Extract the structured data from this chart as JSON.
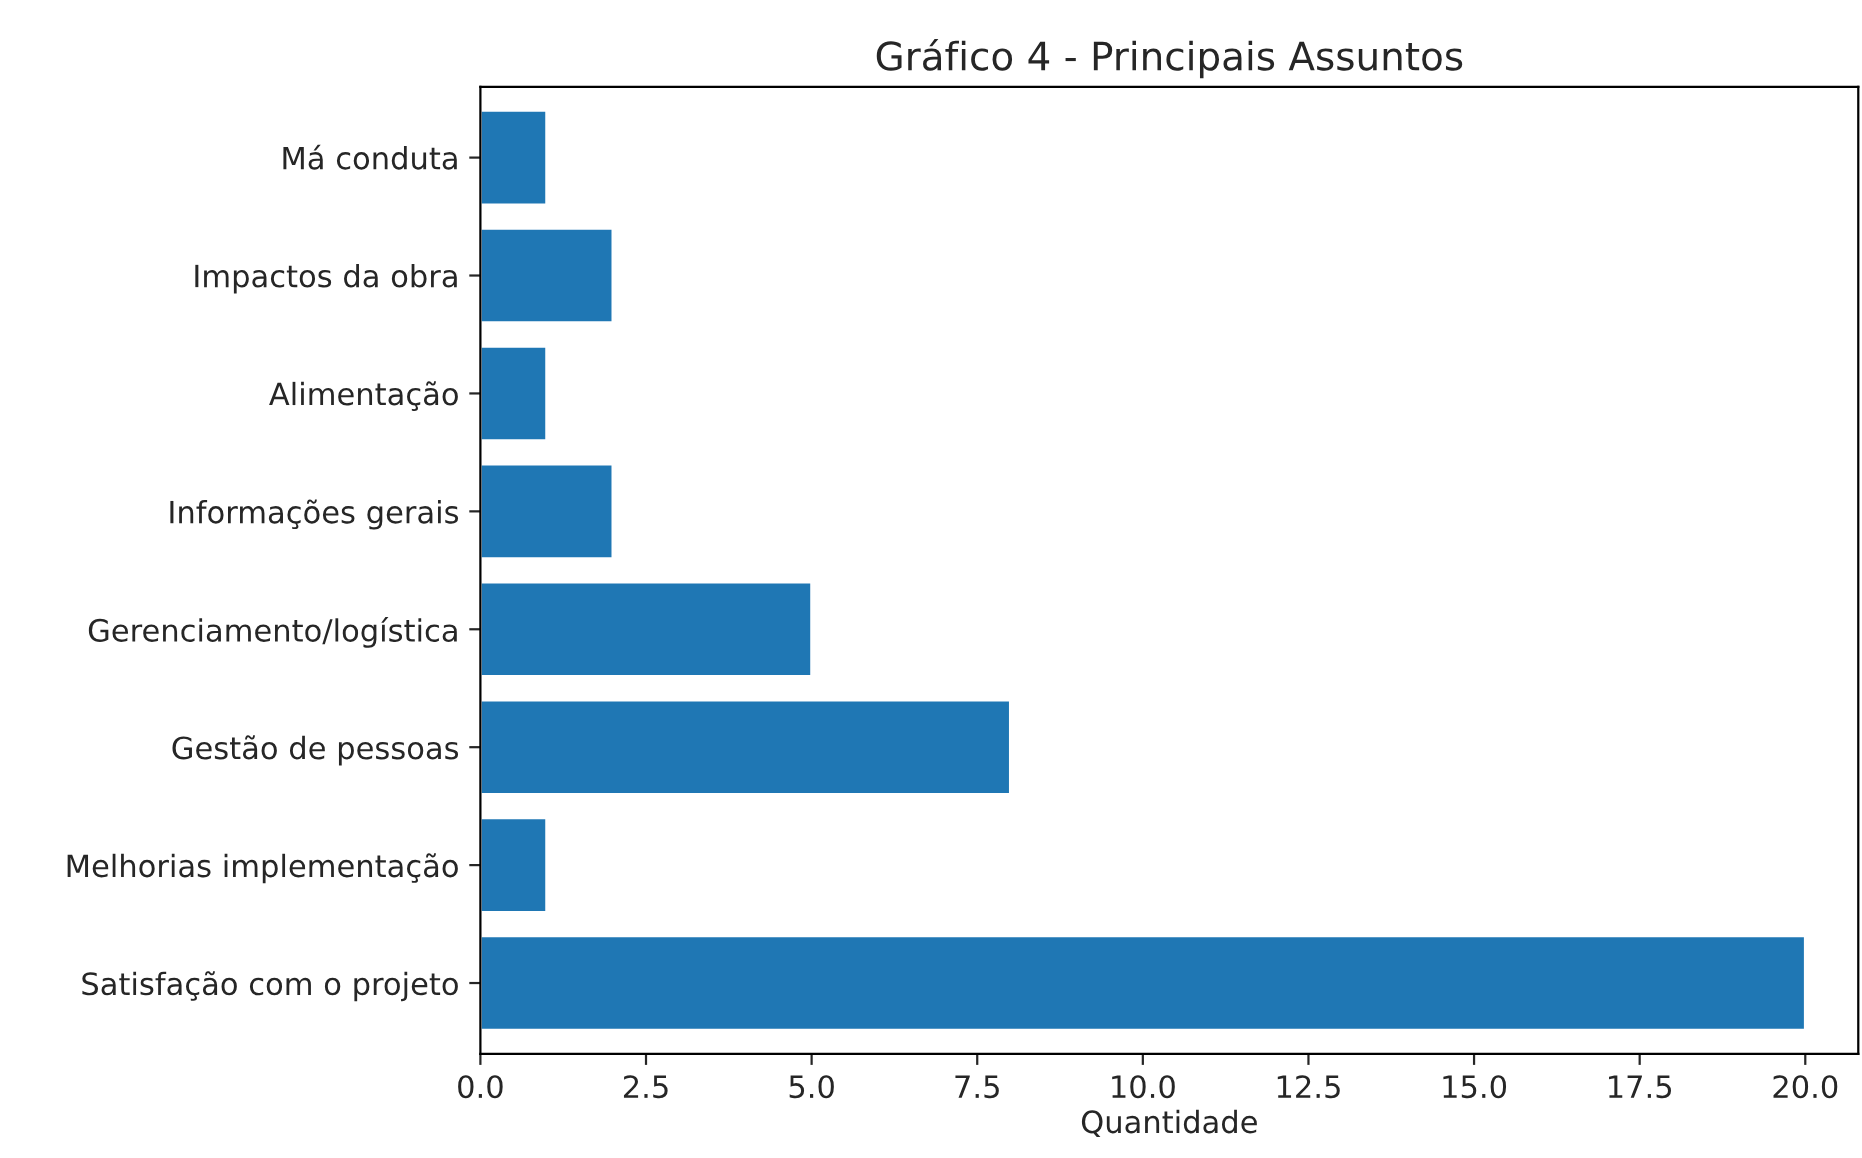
{
  "chart_data": {
    "type": "bar",
    "orientation": "horizontal",
    "title": "Gráfico 4 - Principais Assuntos",
    "xlabel": "Quantidade",
    "categories": [
      "Má conduta",
      "Impactos da obra",
      "Alimentação",
      "Informações gerais",
      "Gerenciamento/logística",
      "Gestão de pessoas",
      "Melhorias implementação",
      "Satisfação com o projeto"
    ],
    "values": [
      1,
      2,
      1,
      2,
      5,
      8,
      1,
      20
    ],
    "color": "#1f77b4",
    "xlim": [
      0,
      20.8
    ],
    "xticks": [
      {
        "value": 0,
        "label": "0.0"
      },
      {
        "value": 2.5,
        "label": "2.5"
      },
      {
        "value": 5,
        "label": "5.0"
      },
      {
        "value": 7.5,
        "label": "7.5"
      },
      {
        "value": 10,
        "label": "10.0"
      },
      {
        "value": 12.5,
        "label": "12.5"
      },
      {
        "value": 15,
        "label": "15.0"
      },
      {
        "value": 17.5,
        "label": "17.5"
      },
      {
        "value": 20,
        "label": "20.0"
      }
    ],
    "grid": false,
    "legend": false
  }
}
